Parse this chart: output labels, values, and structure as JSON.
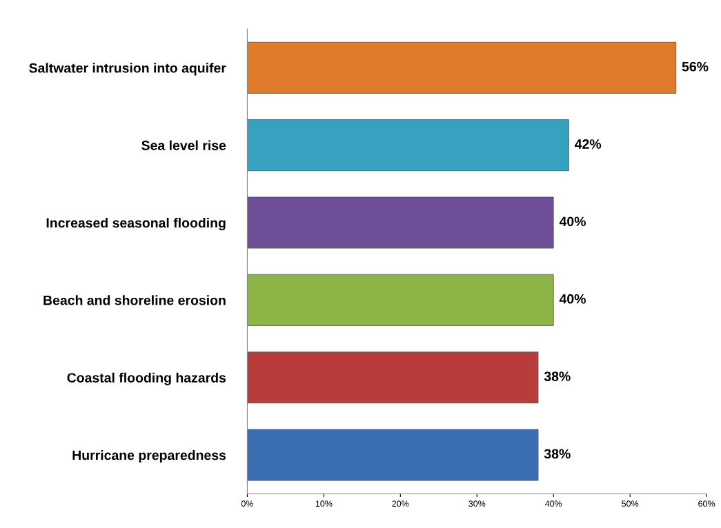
{
  "chart_data": {
    "type": "bar",
    "orientation": "horizontal",
    "categories": [
      "Saltwater intrusion into aquifer",
      "Sea level rise",
      "Increased seasonal flooding",
      "Beach and shoreline erosion",
      "Coastal flooding hazards",
      "Hurricane preparedness"
    ],
    "values": [
      56,
      42,
      40,
      40,
      38,
      38
    ],
    "colors": [
      "#e07b2c",
      "#36a2c0",
      "#6c4f96",
      "#8cb447",
      "#b73c3a",
      "#3b6db3"
    ],
    "value_labels": [
      "56%",
      "42%",
      "40%",
      "40%",
      "38%",
      "38%"
    ],
    "xlim": [
      0,
      60
    ],
    "xticks": [
      {
        "value": 0,
        "label": "0%"
      },
      {
        "value": 10,
        "label": "10%"
      },
      {
        "value": 20,
        "label": "20%"
      },
      {
        "value": 30,
        "label": "30%"
      },
      {
        "value": 40,
        "label": "40%"
      },
      {
        "value": 50,
        "label": "50%"
      },
      {
        "value": 60,
        "label": "60%"
      }
    ],
    "grid": false,
    "legend": false
  }
}
